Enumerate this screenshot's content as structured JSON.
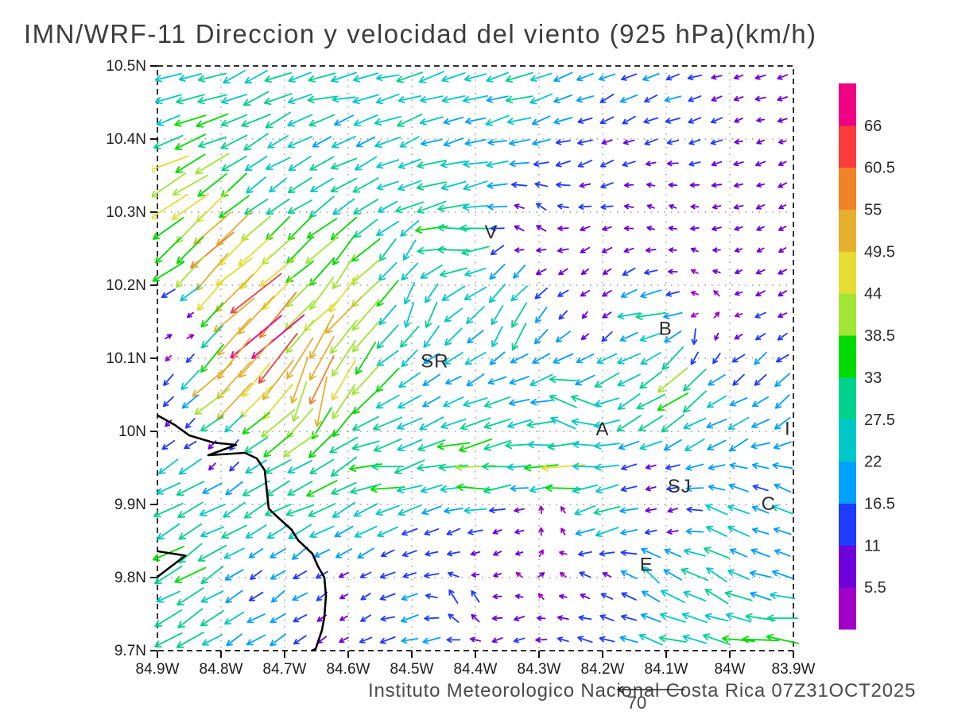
{
  "title": "IMN/WRF-11 Direccion y velocidad del viento (925 hPa)(km/h)",
  "footer": {
    "credit": "Instituto Meteorologico Nacional Costa Rica 07Z31OCT2025",
    "reference_vector_label": "70"
  },
  "axes": {
    "lat_tick_labels": [
      "10.5N",
      "10.4N",
      "10.3N",
      "10.2N",
      "10.1N",
      "10N",
      "9.9N",
      "9.8N",
      "9.7N"
    ],
    "lat_tick_values": [
      10.5,
      10.4,
      10.3,
      10.2,
      10.1,
      10.0,
      9.9,
      9.8,
      9.7
    ],
    "lon_tick_labels": [
      "84.9W",
      "84.8W",
      "84.7W",
      "84.6W",
      "84.5W",
      "84.4W",
      "84.3W",
      "84.2W",
      "84.1W",
      "84W",
      "83.9W"
    ],
    "lon_tick_values": [
      -84.9,
      -84.8,
      -84.7,
      -84.6,
      -84.5,
      -84.4,
      -84.3,
      -84.2,
      -84.1,
      -84.0,
      -83.9
    ],
    "grid": true
  },
  "colorbar": {
    "levels": [
      5.5,
      11,
      16.5,
      22,
      27.5,
      33,
      38.5,
      44,
      49.5,
      55,
      60.5,
      66
    ],
    "colors_bottom_to_top": [
      "#A000C8",
      "#6E00DC",
      "#1E3CFF",
      "#00A0FF",
      "#00C8C8",
      "#00D28C",
      "#00DC00",
      "#A0E632",
      "#E6DC32",
      "#E6AF2D",
      "#F08228",
      "#FA3C3C",
      "#F00082"
    ],
    "units": "km/h"
  },
  "map_labels": [
    {
      "label": "V",
      "lon": -84.375,
      "lat": 10.273
    },
    {
      "label": "B",
      "lon": -84.101,
      "lat": 10.141
    },
    {
      "label": "SR",
      "lon": -84.464,
      "lat": 10.096
    },
    {
      "label": "A",
      "lon": -84.2,
      "lat": 10.003
    },
    {
      "label": "I",
      "lon": -83.909,
      "lat": 10.004
    },
    {
      "label": "SJ",
      "lon": -84.079,
      "lat": 9.925
    },
    {
      "label": "C",
      "lon": -83.939,
      "lat": 9.901
    },
    {
      "label": "E",
      "lon": -84.131,
      "lat": 9.818
    }
  ],
  "chart_data": {
    "type": "quiver",
    "title": "IMN/WRF-11 Direccion y velocidad del viento (925 hPa)(km/h)",
    "units": "km/h",
    "level": "925 hPa",
    "valid_time": "07Z31OCT2025",
    "lon_range": [
      -84.9,
      -83.9
    ],
    "lat_range": [
      9.7,
      10.5
    ],
    "grid": {
      "cols": 29,
      "rows": 27
    },
    "reference_vector": {
      "speed": 70
    },
    "speed_levels": [
      5.5,
      11,
      16.5,
      22,
      27.5,
      33,
      38.5,
      44,
      49.5,
      55,
      60.5,
      66
    ],
    "control_points_lon_lat_u_v": [
      [
        -84.88,
        10.47,
        -24,
        -6
      ],
      [
        -84.6,
        10.47,
        -26,
        -5
      ],
      [
        -84.35,
        10.47,
        -25,
        -8
      ],
      [
        -84.15,
        10.46,
        -15,
        -7
      ],
      [
        -83.95,
        10.46,
        -9,
        -3
      ],
      [
        -84.88,
        10.42,
        -28,
        -8
      ],
      [
        -84.6,
        10.41,
        -22,
        -8
      ],
      [
        -84.4,
        10.4,
        -20,
        -5
      ],
      [
        -84.18,
        10.4,
        -11,
        -5
      ],
      [
        -83.93,
        10.41,
        -8,
        -2
      ],
      [
        -84.88,
        10.37,
        -38,
        -16
      ],
      [
        -84.86,
        10.31,
        -35,
        -28
      ],
      [
        -84.7,
        10.32,
        -20,
        -14
      ],
      [
        -84.55,
        10.33,
        -24,
        -10
      ],
      [
        -84.42,
        10.34,
        -30,
        -5
      ],
      [
        -84.3,
        10.29,
        -9,
        6
      ],
      [
        -84.12,
        10.31,
        -6,
        3
      ],
      [
        -83.93,
        10.3,
        -7,
        -3
      ],
      [
        -84.43,
        10.275,
        -33,
        -1
      ],
      [
        -84.45,
        10.245,
        -35,
        -2
      ],
      [
        -84.33,
        10.28,
        -10,
        5
      ],
      [
        -84.32,
        10.245,
        -9,
        0
      ],
      [
        -84.8,
        10.25,
        -38,
        -36
      ],
      [
        -84.62,
        10.22,
        -25,
        -30
      ],
      [
        -84.5,
        10.24,
        -16,
        -22
      ],
      [
        -84.35,
        10.22,
        -15,
        -18
      ],
      [
        -84.22,
        10.22,
        -6,
        -6
      ],
      [
        -84.05,
        10.22,
        -5,
        3
      ],
      [
        -83.92,
        10.22,
        -7,
        -4
      ],
      [
        -84.75,
        10.17,
        -46,
        -44
      ],
      [
        -84.6,
        10.16,
        -30,
        -36
      ],
      [
        -84.49,
        10.16,
        -6,
        -26
      ],
      [
        -84.34,
        10.14,
        -12,
        -26
      ],
      [
        -84.22,
        10.15,
        -5,
        -7
      ],
      [
        -84.12,
        10.15,
        -28,
        -5
      ],
      [
        -84.03,
        10.16,
        3,
        4
      ],
      [
        -83.91,
        10.15,
        -9,
        -6
      ],
      [
        -84.72,
        10.11,
        -48,
        -46
      ],
      [
        -84.87,
        10.13,
        5,
        4
      ],
      [
        -84.8,
        10.06,
        -40,
        -38
      ],
      [
        -84.65,
        10.05,
        -14,
        -50
      ],
      [
        -84.6,
        10.1,
        -22,
        -44
      ],
      [
        -84.52,
        10.1,
        -20,
        -18
      ],
      [
        -84.45,
        10.07,
        -16,
        -8
      ],
      [
        -84.33,
        10.08,
        -20,
        -8
      ],
      [
        -84.2,
        10.08,
        -22,
        -14
      ],
      [
        -84.08,
        10.07,
        -30,
        -26
      ],
      [
        -84.05,
        10.12,
        -3,
        -14
      ],
      [
        -83.95,
        10.08,
        -12,
        -10
      ],
      [
        -83.91,
        10.04,
        -16,
        -12
      ],
      [
        -84.87,
        10.01,
        -7,
        -6
      ],
      [
        -84.8,
        9.965,
        -5,
        -6
      ],
      [
        -84.68,
        10.0,
        -30,
        -28
      ],
      [
        -84.62,
        9.96,
        -28,
        -18
      ],
      [
        -84.55,
        10.0,
        -30,
        -12
      ],
      [
        -84.4,
        10.0,
        -32,
        -8
      ],
      [
        -84.25,
        10.03,
        -32,
        12
      ],
      [
        -84.13,
        10.02,
        -28,
        -18
      ],
      [
        -84.0,
        10.0,
        -20,
        -12
      ],
      [
        -84.55,
        9.945,
        -38,
        -4
      ],
      [
        -84.4,
        9.94,
        -43,
        -2
      ],
      [
        -84.27,
        9.945,
        -40,
        -4
      ],
      [
        -84.12,
        9.94,
        -11,
        -3
      ],
      [
        -83.96,
        9.93,
        -17,
        6
      ],
      [
        -84.85,
        9.93,
        -25,
        -13
      ],
      [
        -84.7,
        9.94,
        -26,
        -15
      ],
      [
        -84.85,
        9.88,
        -26,
        -14
      ],
      [
        -84.7,
        9.89,
        -27,
        -13
      ],
      [
        -84.58,
        9.88,
        -22,
        -10
      ],
      [
        -84.45,
        9.87,
        -16,
        -5
      ],
      [
        -84.35,
        9.86,
        -9,
        -4
      ],
      [
        -84.28,
        9.88,
        4,
        4
      ],
      [
        -84.2,
        9.87,
        -26,
        -10
      ],
      [
        -84.1,
        9.88,
        -8,
        -4
      ],
      [
        -84.0,
        9.88,
        -20,
        8
      ],
      [
        -83.92,
        9.9,
        -18,
        9
      ],
      [
        -84.85,
        9.82,
        -27,
        -17
      ],
      [
        -84.72,
        9.81,
        -12,
        -9
      ],
      [
        -84.6,
        9.79,
        -7,
        -5
      ],
      [
        -84.5,
        9.83,
        -13,
        -3
      ],
      [
        -84.38,
        9.82,
        -6,
        -3
      ],
      [
        -84.3,
        9.81,
        5,
        4
      ],
      [
        -84.42,
        9.77,
        -9,
        13
      ],
      [
        -84.2,
        9.8,
        -9,
        5
      ],
      [
        -84.12,
        9.81,
        -20,
        15
      ],
      [
        -84.04,
        9.8,
        -26,
        14
      ],
      [
        -83.93,
        9.82,
        -18,
        6
      ],
      [
        -84.87,
        9.72,
        -25,
        -15
      ],
      [
        -84.75,
        9.72,
        -17,
        -11
      ],
      [
        -84.62,
        9.74,
        -8,
        -5
      ],
      [
        -84.5,
        9.72,
        -17,
        -5
      ],
      [
        -84.35,
        9.72,
        -10,
        -3
      ],
      [
        -84.22,
        9.72,
        -14,
        3
      ],
      [
        -84.08,
        9.73,
        -26,
        8
      ],
      [
        -83.95,
        9.72,
        -34,
        4
      ]
    ],
    "coastline": [
      [
        [
          -84.9,
          10.022
        ],
        [
          -84.8725,
          10.0087
        ],
        [
          -84.85,
          9.9946
        ],
        [
          -84.8125,
          9.9848
        ],
        [
          -84.7763,
          9.9815
        ],
        [
          -84.82,
          9.9674
        ],
        [
          -84.7625,
          9.9707
        ],
        [
          -84.7438,
          9.963
        ],
        [
          -84.7313,
          9.9467
        ],
        [
          -84.725,
          9.8946
        ],
        [
          -84.7163,
          9.887
        ],
        [
          -84.6888,
          9.8652
        ],
        [
          -84.6788,
          9.8511
        ],
        [
          -84.6563,
          9.8326
        ],
        [
          -84.6475,
          9.8152
        ],
        [
          -84.6375,
          9.8
        ],
        [
          -84.635,
          9.775
        ],
        [
          -84.6375,
          9.7457
        ],
        [
          -84.6413,
          9.7283
        ],
        [
          -84.6513,
          9.7022
        ],
        [
          -84.6575,
          9.7
        ]
      ],
      [
        [
          -84.9,
          9.836
        ],
        [
          -84.856,
          9.83
        ],
        [
          -84.9,
          9.801
        ]
      ]
    ]
  }
}
